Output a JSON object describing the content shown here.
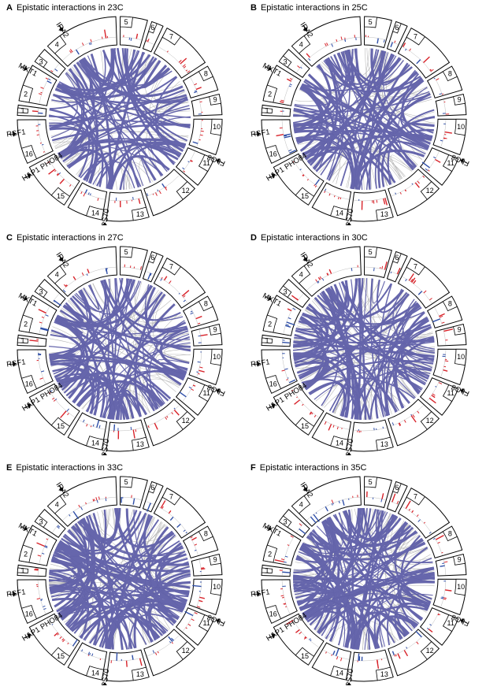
{
  "panels": [
    {
      "letter": "A",
      "title": "Epistatic interactions in 23C"
    },
    {
      "letter": "B",
      "title": "Epistatic interactions in 25C"
    },
    {
      "letter": "C",
      "title": "Epistatic interactions in 27C"
    },
    {
      "letter": "D",
      "title": "Epistatic interactions in 30C"
    },
    {
      "letter": "E",
      "title": "Epistatic interactions in 33C"
    },
    {
      "letter": "F",
      "title": "Epistatic interactions in 35C"
    }
  ],
  "chromosomes": [
    "1",
    "2",
    "3",
    "4",
    "5",
    "6",
    "7",
    "8",
    "9",
    "10",
    "11",
    "12",
    "13",
    "14",
    "15",
    "16"
  ],
  "genes": [
    "FLO8",
    "VPS70",
    "HAP1 PHO84",
    "RSF1",
    "MKT1",
    "IRA2"
  ],
  "colors": {
    "strong_link": "#5a5aa6",
    "weak_link": "#a8a8a8",
    "positive_bar": "#d8232a",
    "negative_bar": "#2f4fa8"
  }
}
